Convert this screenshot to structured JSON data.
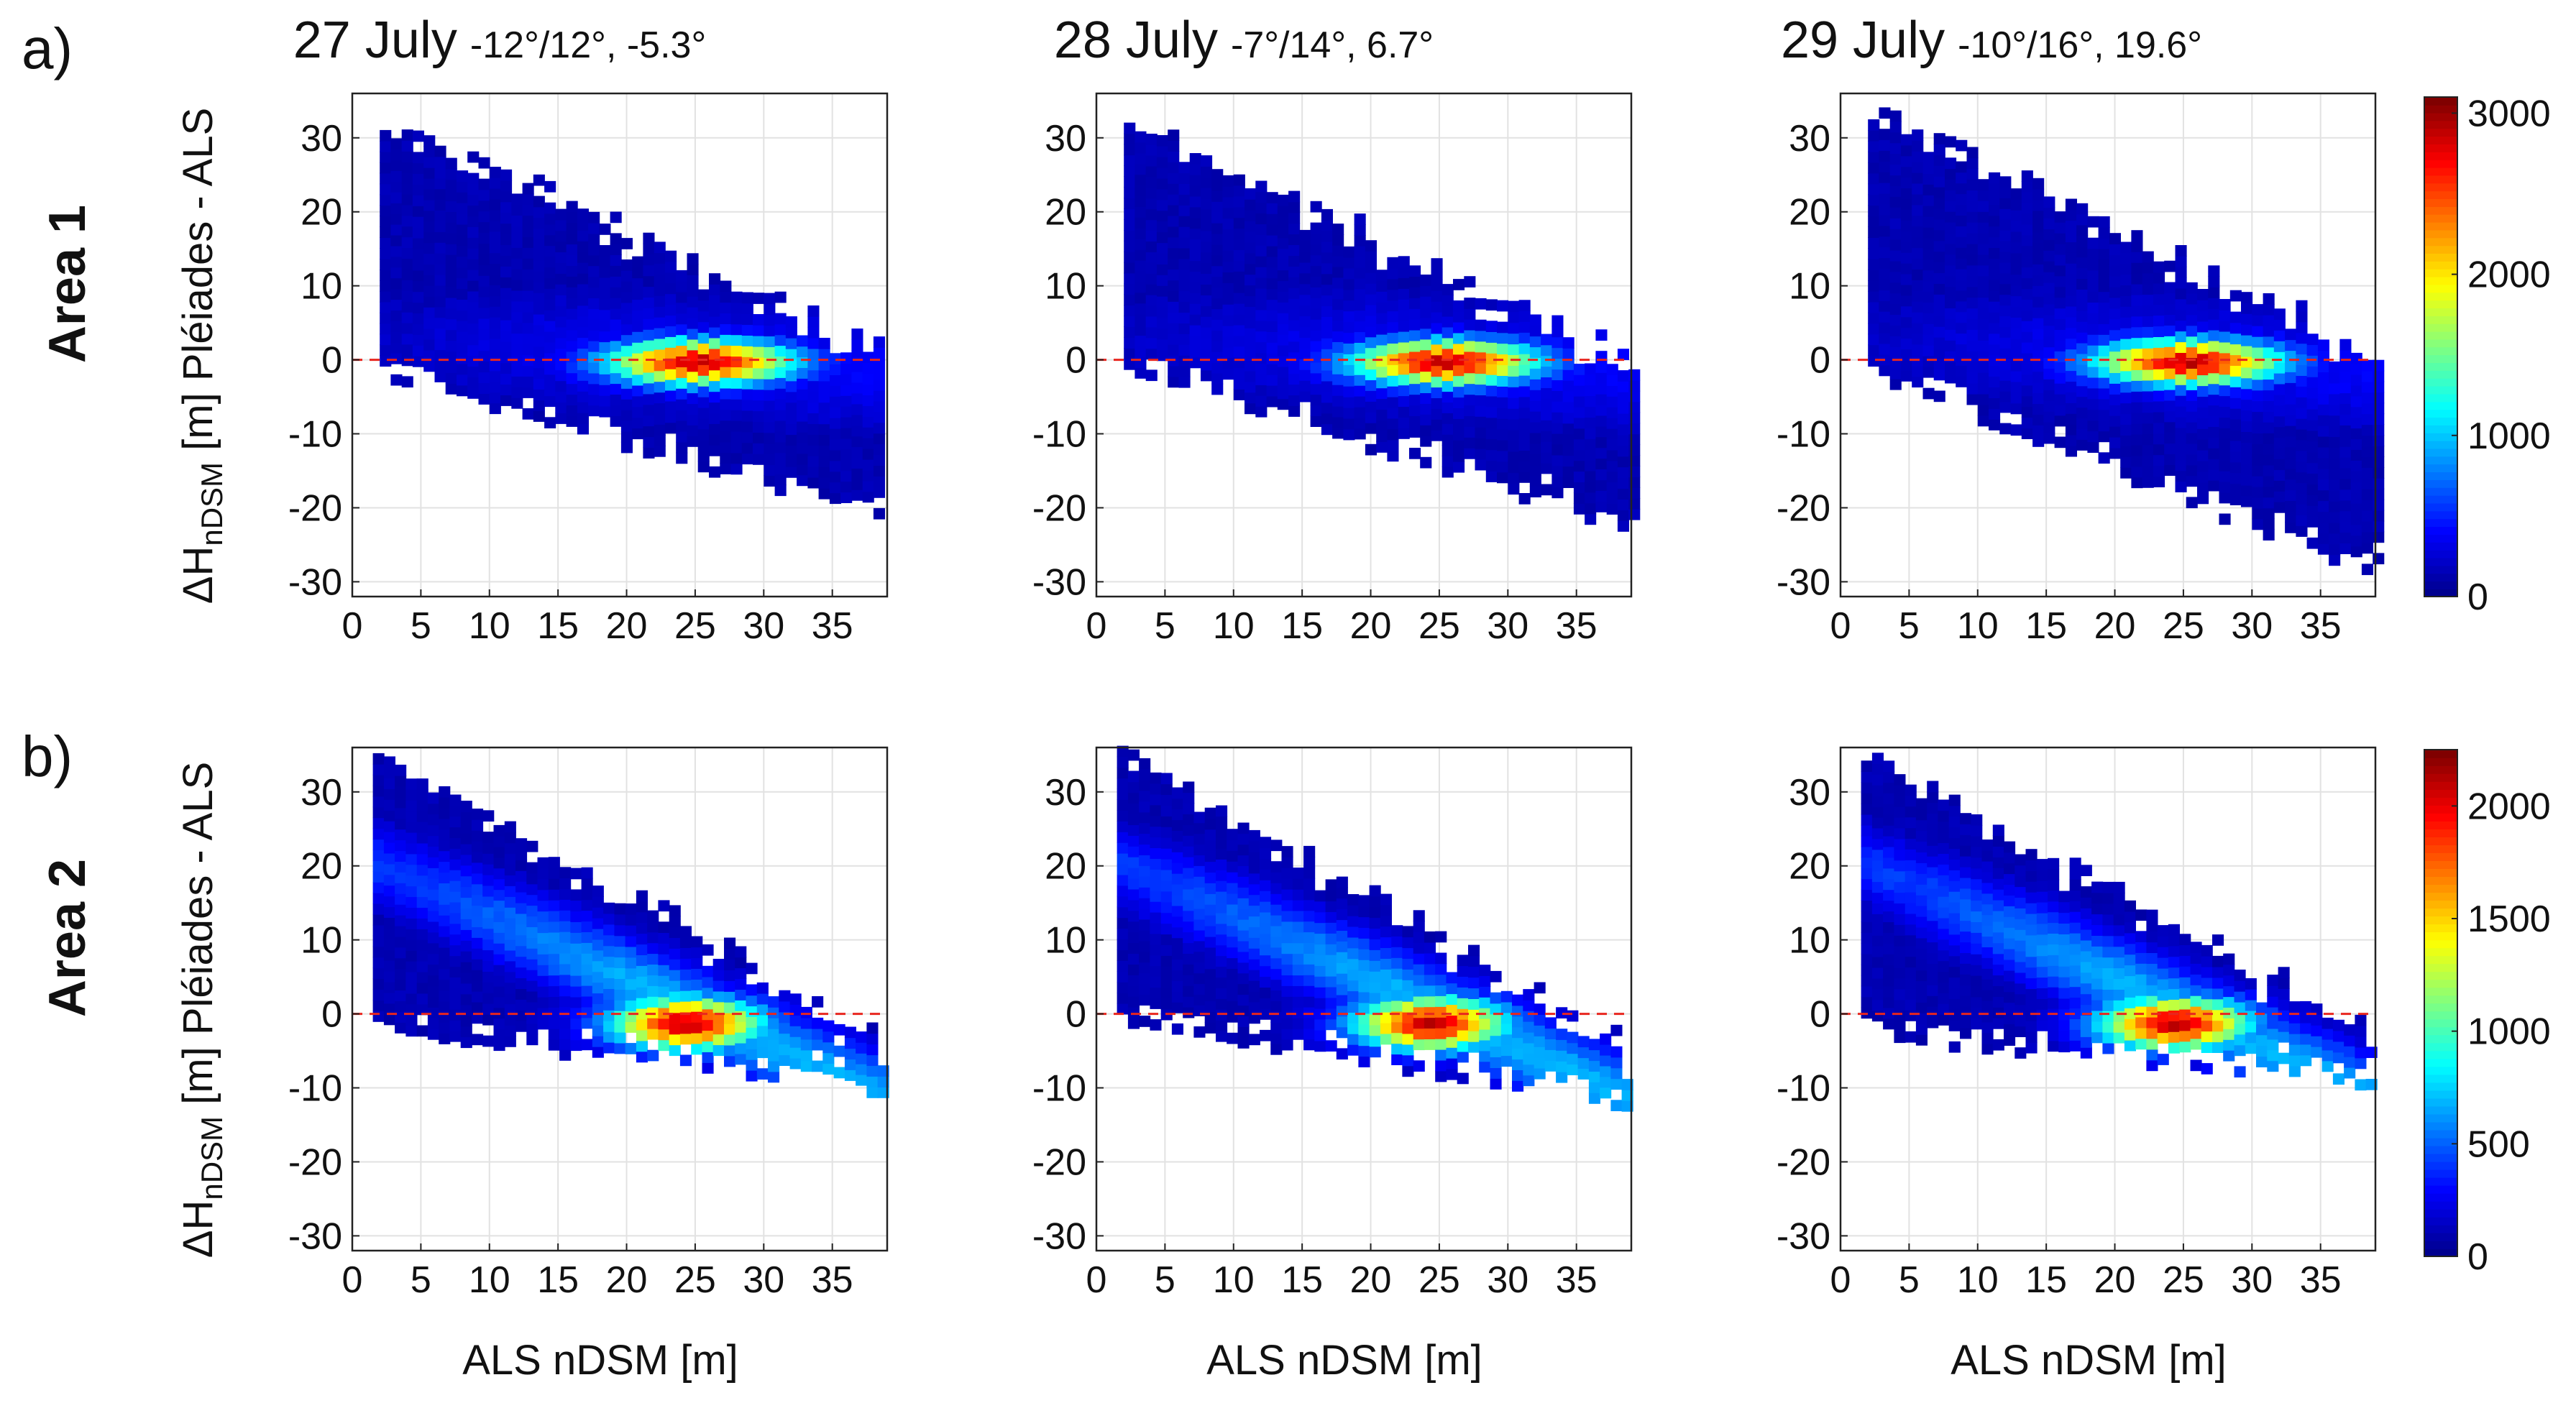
{
  "figure": {
    "panel_labels": [
      "a)",
      "b)"
    ],
    "row_labels": [
      "Area 1",
      "Area 2"
    ],
    "ylabel": {
      "main": "ΔH",
      "sub": "nDSM",
      "rest": " [m] Pléiades - ALS"
    },
    "xlabel": "ALS nDSM [m]"
  },
  "columns": [
    {
      "date": "27 July",
      "stats": "-12°/12°, -5.3°"
    },
    {
      "date": "28 July",
      "stats": "-7°/14°, 6.7°"
    },
    {
      "date": "29 July",
      "stats": "-10°/16°, 19.6°"
    }
  ],
  "colors": {
    "reference_line": "#e8261f",
    "colormap": [
      "#00008f",
      "#0000ff",
      "#0080ff",
      "#00ffff",
      "#80ff80",
      "#ffff00",
      "#ff8000",
      "#ff0000",
      "#800000"
    ]
  },
  "chart_data": [
    {
      "type": "heatmap",
      "row": "Area 1",
      "column": "27 July",
      "xlabel": "",
      "ylabel": "ΔH nDSM [m] Pléiades - ALS",
      "xlim": [
        0,
        39
      ],
      "ylim": [
        -32,
        36
      ],
      "xticks": [
        0,
        5,
        10,
        15,
        20,
        25,
        30,
        35
      ],
      "yticks": [
        -30,
        -20,
        -10,
        0,
        10,
        20,
        30
      ],
      "x_start": 2,
      "x_end": 38.5,
      "upper_left": 33,
      "upper_right": 3,
      "lower_left": -3,
      "lower_right": -23,
      "ridge": [
        [
          2,
          2
        ],
        [
          38,
          -2
        ]
      ],
      "peak": {
        "x": 25,
        "y": -1,
        "count": 3000
      },
      "horizontal_ref_y": 0,
      "colorbar": {
        "min": 0,
        "max": 3100,
        "ticks": [
          0,
          1000,
          2000,
          3000
        ]
      }
    },
    {
      "type": "heatmap",
      "row": "Area 1",
      "column": "28 July",
      "xlabel": "",
      "ylabel": "",
      "xlim": [
        0,
        39
      ],
      "ylim": [
        -32,
        36
      ],
      "xticks": [
        0,
        5,
        10,
        15,
        20,
        25,
        30,
        35
      ],
      "yticks": [
        -30,
        -20,
        -10,
        0,
        10,
        20,
        30
      ],
      "x_start": 2,
      "x_end": 39,
      "upper_left": 33,
      "upper_right": 1,
      "lower_left": -2,
      "lower_right": -25,
      "ridge": [
        [
          2,
          2
        ],
        [
          38,
          -2
        ]
      ],
      "peak": {
        "x": 25,
        "y": -1,
        "count": 3000
      },
      "horizontal_ref_y": 0,
      "colorbar": {
        "min": 0,
        "max": 3100,
        "ticks": [
          0,
          1000,
          2000,
          3000
        ]
      }
    },
    {
      "type": "heatmap",
      "row": "Area 1",
      "column": "29 July",
      "xlabel": "",
      "ylabel": "",
      "xlim": [
        0,
        39
      ],
      "ylim": [
        -32,
        36
      ],
      "xticks": [
        0,
        5,
        10,
        15,
        20,
        25,
        30,
        35
      ],
      "yticks": [
        -30,
        -20,
        -10,
        0,
        10,
        20,
        30
      ],
      "x_start": 2,
      "x_end": 39,
      "upper_left": 35,
      "upper_right": 2,
      "lower_left": -3,
      "lower_right": -31,
      "ridge": [
        [
          2,
          2
        ],
        [
          38,
          -2
        ]
      ],
      "peak": {
        "x": 25,
        "y": -1,
        "count": 3000
      },
      "horizontal_ref_y": 0,
      "colorbar": {
        "min": 0,
        "max": 3100,
        "ticks": [
          0,
          1000,
          2000,
          3000
        ]
      }
    },
    {
      "type": "heatmap",
      "row": "Area 2",
      "column": "27 July",
      "xlabel": "ALS nDSM [m]",
      "ylabel": "ΔH nDSM [m] Pléiades - ALS",
      "xlim": [
        0,
        39
      ],
      "ylim": [
        -32,
        36
      ],
      "xticks": [
        0,
        5,
        10,
        15,
        20,
        25,
        30,
        35
      ],
      "yticks": [
        -30,
        -20,
        -10,
        0,
        10,
        20,
        30
      ],
      "x_start": 1.5,
      "x_end": 38.5,
      "upper_left": 36,
      "upper_right": -2,
      "lower_left": -3,
      "lower_right": -12,
      "ridge": [
        [
          2,
          19
        ],
        [
          30,
          -5
        ]
      ],
      "peak": {
        "x": 24,
        "y": -2,
        "count": 2100
      },
      "horizontal_ref_y": 0,
      "colorbar": {
        "min": 0,
        "max": 2250,
        "ticks": [
          0,
          500,
          1000,
          1500,
          2000
        ]
      }
    },
    {
      "type": "heatmap",
      "row": "Area 2",
      "column": "28 July",
      "xlabel": "ALS nDSM [m]",
      "ylabel": "",
      "xlim": [
        0,
        39
      ],
      "ylim": [
        -32,
        36
      ],
      "xticks": [
        0,
        5,
        10,
        15,
        20,
        25,
        30,
        35
      ],
      "yticks": [
        -30,
        -20,
        -10,
        0,
        10,
        20,
        30
      ],
      "x_start": 1.5,
      "x_end": 39,
      "upper_left": 36,
      "upper_right": -4,
      "lower_left": -2,
      "lower_right": -14,
      "ridge": [
        [
          2,
          19
        ],
        [
          30,
          -5
        ]
      ],
      "peak": {
        "x": 24,
        "y": -2,
        "count": 2100
      },
      "horizontal_ref_y": 0,
      "colorbar": {
        "min": 0,
        "max": 2250,
        "ticks": [
          0,
          500,
          1000,
          1500,
          2000
        ]
      }
    },
    {
      "type": "heatmap",
      "row": "Area 2",
      "column": "29 July",
      "xlabel": "ALS nDSM [m]",
      "ylabel": "",
      "xlim": [
        0,
        39
      ],
      "ylim": [
        -32,
        36
      ],
      "xticks": [
        0,
        5,
        10,
        15,
        20,
        25,
        30,
        35
      ],
      "yticks": [
        -30,
        -20,
        -10,
        0,
        10,
        20,
        30
      ],
      "x_start": 1.5,
      "x_end": 39,
      "upper_left": 36,
      "upper_right": -2,
      "lower_left": -4,
      "lower_right": -11,
      "ridge": [
        [
          2,
          19
        ],
        [
          30,
          -5
        ]
      ],
      "peak": {
        "x": 24,
        "y": -2,
        "count": 2100
      },
      "horizontal_ref_y": 0,
      "colorbar": {
        "min": 0,
        "max": 2250,
        "ticks": [
          0,
          500,
          1000,
          1500,
          2000
        ]
      }
    }
  ]
}
